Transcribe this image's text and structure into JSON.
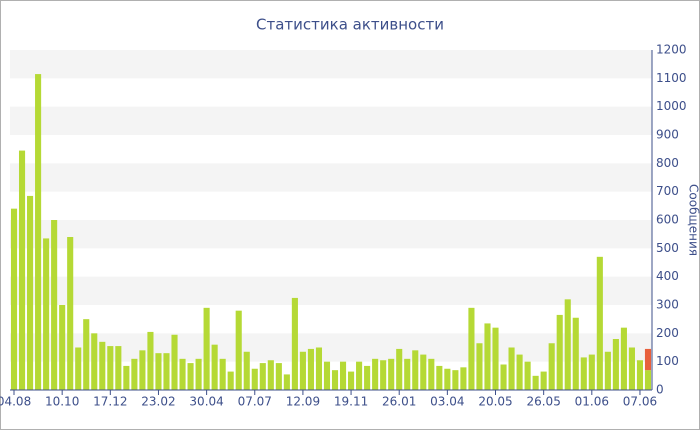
{
  "chart_data": {
    "type": "stacked-bar",
    "title": "Статистика активности",
    "y_label": "Сообщения",
    "categories": [
      "04.08",
      null,
      null,
      null,
      null,
      null,
      "10.10",
      null,
      null,
      null,
      null,
      null,
      "17.12",
      null,
      null,
      null,
      null,
      null,
      "23.02",
      null,
      null,
      null,
      null,
      null,
      "30.04",
      null,
      null,
      null,
      null,
      null,
      "07.07",
      null,
      null,
      null,
      null,
      null,
      "12.09",
      null,
      null,
      null,
      null,
      null,
      "19.11",
      null,
      null,
      null,
      null,
      null,
      "26.01",
      null,
      null,
      null,
      null,
      null,
      "03.04",
      null,
      null,
      null,
      null,
      null,
      "20.05",
      null,
      null,
      null,
      null,
      null,
      "26.05",
      null,
      null,
      null,
      null,
      null,
      "01.06",
      null,
      null,
      null,
      null,
      null,
      "07.06",
      null
    ],
    "series": [
      {
        "color": "#b5d935",
        "values": [
          640,
          845,
          685,
          1115,
          535,
          600,
          300,
          540,
          150,
          250,
          200,
          170,
          155,
          155,
          85,
          110,
          140,
          205,
          130,
          130,
          195,
          110,
          95,
          110,
          290,
          160,
          110,
          65,
          280,
          135,
          75,
          95,
          105,
          95,
          55,
          325,
          135,
          145,
          150,
          100,
          70,
          100,
          65,
          100,
          85,
          110,
          105,
          110,
          145,
          110,
          140,
          125,
          110,
          85,
          75,
          70,
          80,
          290,
          165,
          235,
          220,
          90,
          150,
          125,
          100,
          50,
          65,
          165,
          265,
          320,
          255,
          115,
          125,
          470,
          135,
          180,
          220,
          150,
          105,
          70
        ]
      },
      {
        "color": "#e8603c",
        "values": [
          null,
          null,
          null,
          null,
          null,
          null,
          null,
          null,
          null,
          null,
          null,
          null,
          null,
          null,
          null,
          null,
          null,
          null,
          null,
          null,
          null,
          null,
          null,
          null,
          null,
          null,
          null,
          null,
          null,
          null,
          null,
          null,
          null,
          null,
          null,
          null,
          null,
          null,
          null,
          null,
          null,
          null,
          null,
          null,
          null,
          null,
          null,
          null,
          null,
          null,
          null,
          null,
          null,
          null,
          null,
          null,
          null,
          null,
          null,
          null,
          null,
          null,
          null,
          null,
          null,
          null,
          null,
          null,
          null,
          null,
          null,
          null,
          null,
          null,
          null,
          null,
          null,
          null,
          null,
          75
        ]
      }
    ],
    "ylim": [
      0,
      1200
    ],
    "yticks": [
      0,
      100,
      200,
      300,
      400,
      500,
      600,
      700,
      800,
      900,
      1000,
      1100,
      1200
    ],
    "grid": "bands"
  }
}
